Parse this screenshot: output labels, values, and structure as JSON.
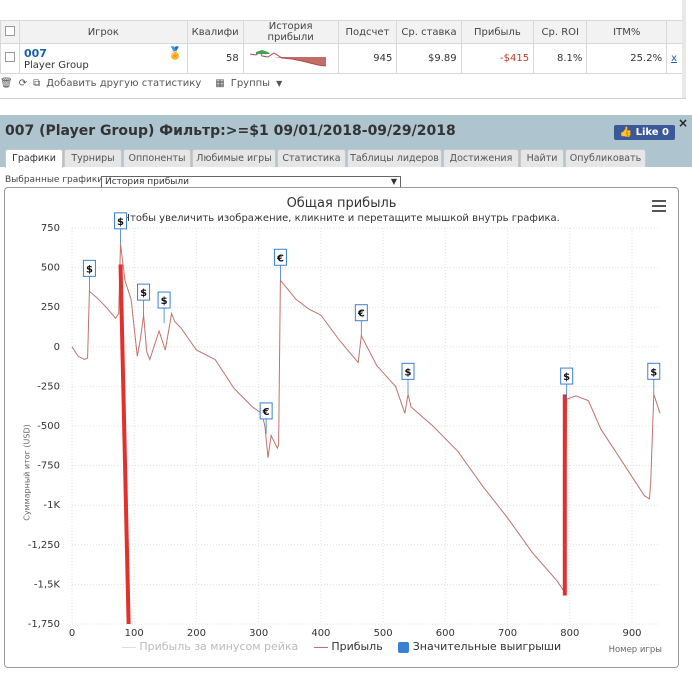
{
  "table": {
    "headers": [
      "Игрок",
      "Квалифи",
      "История прибыли",
      "Подсчет",
      "Ср. ставка",
      "Прибыль",
      "Ср. ROI",
      "ITM%"
    ],
    "row": {
      "player": "007",
      "group": "Player Group",
      "qualified": "58",
      "count": "945",
      "avg_stake": "$9.89",
      "profit": "-$415",
      "avg_roi": "8.1%",
      "itm": "25.2%",
      "remove": "x"
    }
  },
  "toolbar": {
    "add_stat": "Добавить другую статистику",
    "groups": "Группы"
  },
  "header": {
    "title": "007 (Player Group) Фильтр:>=$1 09/01/2018-09/29/2018",
    "like": "Like 0",
    "close": "×"
  },
  "tabs": [
    "Графики",
    "Турниры",
    "Оппоненты",
    "Любимые игры",
    "Статистика",
    "Таблицы лидеров",
    "Достижения",
    "Найти",
    "Опубликовать"
  ],
  "graphs": {
    "label": "Выбранные графики:",
    "selected": "История прибыли"
  },
  "colors": {
    "profit_line": "#c0736d",
    "big_win": "#e2312b",
    "legend_box": "#3a7fd4",
    "header_bg": "#aec4cf"
  },
  "chart_data": {
    "type": "line",
    "title": "Общая прибыль",
    "subtitle": "Чтобы увеличить изображение, кликните и перетащите мышкой внутрь графика.",
    "ylabel": "Суммарный итог (USD)",
    "xlabel": "Номер игры",
    "xlim": [
      0,
      945
    ],
    "ylim": [
      -1750,
      750
    ],
    "yticks": [
      750,
      500,
      250,
      0,
      -250,
      -500,
      -750,
      -1000,
      -1250,
      -1500,
      -1750
    ],
    "ytick_labels": [
      "750",
      "500",
      "250",
      "0",
      "-250",
      "-500",
      "-750",
      "-1K",
      "-1,250",
      "-1,5K",
      "-1,750"
    ],
    "xticks": [
      0,
      100,
      200,
      300,
      400,
      500,
      600,
      700,
      800,
      900
    ],
    "legend": [
      "Прибыль за минусом рейка",
      "Прибыль",
      "Значительные выигрыши"
    ],
    "series": [
      {
        "name": "Прибыль",
        "x": [
          0,
          10,
          20,
          25,
          28,
          40,
          55,
          70,
          75,
          78,
          85,
          95,
          100,
          105,
          110,
          115,
          120,
          125,
          140,
          150,
          160,
          165,
          175,
          200,
          230,
          260,
          290,
          305,
          310,
          315,
          320,
          330,
          332,
          335,
          360,
          380,
          400,
          430,
          460,
          465,
          490,
          520,
          535,
          540,
          545,
          580,
          620,
          660,
          700,
          740,
          780,
          790,
          792,
          795,
          810,
          830,
          850,
          880,
          910,
          920,
          928,
          930,
          935,
          945
        ],
        "y": [
          0,
          -60,
          -80,
          -70,
          350,
          310,
          250,
          180,
          210,
          650,
          420,
          300,
          120,
          -60,
          50,
          200,
          -30,
          -80,
          100,
          -20,
          210,
          160,
          120,
          -20,
          -80,
          -260,
          -380,
          -420,
          -500,
          -700,
          -560,
          -640,
          -620,
          420,
          300,
          240,
          200,
          40,
          -100,
          70,
          -120,
          -250,
          -420,
          -300,
          -380,
          -500,
          -660,
          -880,
          -1080,
          -1300,
          -1480,
          -1540,
          -1530,
          -330,
          -310,
          -340,
          -520,
          -700,
          -880,
          -940,
          -960,
          -860,
          -300,
          -420
        ]
      }
    ],
    "big_wins": [
      {
        "x": 28,
        "y": 350,
        "symbol": "$"
      },
      {
        "x": 78,
        "y": 650,
        "symbol": "$"
      },
      {
        "x": 115,
        "y": 200,
        "symbol": "$"
      },
      {
        "x": 148,
        "y": 150,
        "symbol": "$"
      },
      {
        "x": 312,
        "y": -550,
        "symbol": "€"
      },
      {
        "x": 335,
        "y": 420,
        "symbol": "€"
      },
      {
        "x": 465,
        "y": 70,
        "symbol": "€"
      },
      {
        "x": 540,
        "y": -300,
        "symbol": "$"
      },
      {
        "x": 795,
        "y": -330,
        "symbol": "$"
      },
      {
        "x": 935,
        "y": -300,
        "symbol": "$"
      }
    ],
    "big_win_bars": [
      {
        "x": 78,
        "from": 520,
        "to": -1750
      },
      {
        "x": 792,
        "from": -300,
        "to": -1570
      }
    ]
  }
}
